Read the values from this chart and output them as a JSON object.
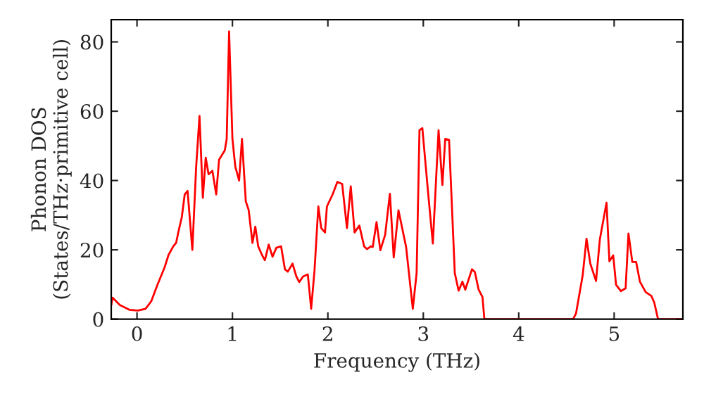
{
  "chart_data": {
    "type": "line",
    "xlabel": "Frequency (THz)",
    "ylabel": "Phonon DOS\n(States/THz·primitive cell)",
    "xlim": [
      -0.27,
      5.72
    ],
    "ylim": [
      0,
      86.4
    ],
    "xticks": [
      0,
      1,
      2,
      3,
      4,
      5
    ],
    "yticks": [
      0,
      20,
      40,
      60,
      80
    ],
    "grid": false,
    "legend": false,
    "series": [
      {
        "color": "#ff0000",
        "x": [
          -0.27,
          -0.256,
          -0.18,
          -0.08,
          0.01,
          0.09,
          0.15,
          0.21,
          0.29,
          0.33,
          0.38,
          0.41,
          0.43,
          0.47,
          0.5,
          0.53,
          0.58,
          0.62,
          0.655,
          0.69,
          0.72,
          0.75,
          0.79,
          0.83,
          0.86,
          0.92,
          0.94,
          0.965,
          1.0,
          1.03,
          1.07,
          1.1,
          1.14,
          1.17,
          1.21,
          1.24,
          1.27,
          1.31,
          1.34,
          1.38,
          1.42,
          1.46,
          1.51,
          1.55,
          1.58,
          1.63,
          1.67,
          1.7,
          1.74,
          1.79,
          1.825,
          1.86,
          1.9,
          1.93,
          1.97,
          1.99,
          2.05,
          2.1,
          2.15,
          2.2,
          2.24,
          2.28,
          2.33,
          2.38,
          2.41,
          2.45,
          2.47,
          2.51,
          2.55,
          2.6,
          2.65,
          2.69,
          2.74,
          2.82,
          2.89,
          2.93,
          2.96,
          2.99,
          3.05,
          3.1,
          3.16,
          3.2,
          3.23,
          3.27,
          3.33,
          3.37,
          3.41,
          3.44,
          3.51,
          3.54,
          3.58,
          3.62,
          3.64,
          4.57,
          4.6,
          4.67,
          4.71,
          4.75,
          4.81,
          4.85,
          4.92,
          4.95,
          4.99,
          5.02,
          5.07,
          5.12,
          5.15,
          5.19,
          5.23,
          5.27,
          5.33,
          5.39,
          5.42,
          5.46,
          5.72
        ],
        "values": [
          4,
          6.2,
          4.1,
          2.7,
          2.5,
          3,
          5.2,
          9.6,
          15,
          18.5,
          21,
          22,
          24.7,
          29.5,
          36,
          37,
          20,
          44,
          58.6,
          35,
          46.6,
          41.8,
          42.8,
          36,
          46,
          48.7,
          52,
          83,
          52,
          44,
          40,
          52,
          34,
          31.5,
          22,
          26.7,
          21,
          18.5,
          17,
          21.5,
          18,
          20.6,
          21,
          14.4,
          13.7,
          16,
          12.3,
          10.7,
          12.3,
          12.9,
          3,
          14,
          32.5,
          26.3,
          25,
          32.5,
          36,
          39.6,
          39,
          26.3,
          38.3,
          25,
          27,
          21,
          20.2,
          21,
          20.8,
          28,
          19.9,
          24.3,
          36.2,
          17.8,
          31.4,
          20.8,
          3,
          13.3,
          54.5,
          55.1,
          36.6,
          21.8,
          54.5,
          38.7,
          52,
          51.7,
          13.3,
          8.2,
          10.8,
          8.5,
          14.4,
          13.6,
          8.5,
          6.4,
          0,
          0,
          1.6,
          12.6,
          23.2,
          16,
          11,
          23,
          33.6,
          16.7,
          18.4,
          9.9,
          8.1,
          8.9,
          24.7,
          16.5,
          16.5,
          10.8,
          7.8,
          6.7,
          4.8,
          0,
          0
        ]
      }
    ]
  }
}
